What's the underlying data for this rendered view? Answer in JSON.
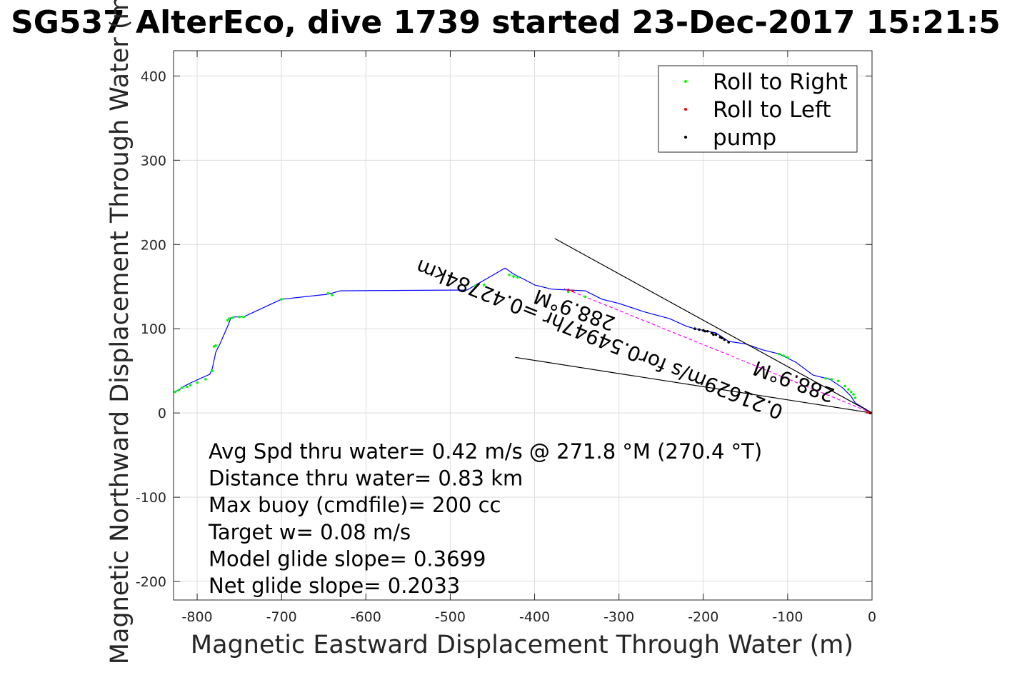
{
  "chart_data": {
    "type": "line",
    "title": "SG537 AlterEco, dive 1739 started 23-Dec-2017 15:21:5",
    "xlabel": "Magnetic Eastward Displacement Through Water (m)",
    "ylabel": "Magnetic Northward Displacement Through Water (m)",
    "xlim": [
      -828,
      0
    ],
    "ylim": [
      -222,
      430
    ],
    "xticks": [
      -800,
      -700,
      -600,
      -500,
      -400,
      -300,
      -200,
      -100,
      0
    ],
    "yticks": [
      -200,
      -100,
      0,
      100,
      200,
      300,
      400
    ],
    "grid": true,
    "legend": {
      "placement": "top-right",
      "entries": [
        {
          "label": "Roll to Right",
          "color": "#00ff00"
        },
        {
          "label": "Roll to Left",
          "color": "#ff0000"
        },
        {
          "label": "pump",
          "color": "#000000"
        }
      ]
    },
    "series": [
      {
        "color": "#0000ff",
        "style": "line",
        "x": [
          0,
          -20,
          -25,
          -35,
          -50,
          -70,
          -90,
          -110,
          -130,
          -150,
          -170,
          -185,
          -200,
          -210,
          -220,
          -240,
          -270,
          -300,
          -320,
          -340,
          -360,
          -380,
          -400,
          -415,
          -425,
          -435,
          -480,
          -630,
          -645,
          -700,
          -745,
          -755,
          -760,
          -763,
          -766,
          -773,
          -778,
          -782,
          -785,
          -805,
          -815,
          -822,
          -828
        ],
        "y": [
          0,
          12,
          20,
          30,
          40,
          45,
          60,
          70,
          75,
          82,
          85,
          95,
          98,
          100,
          103,
          112,
          120,
          130,
          135,
          145,
          146,
          147,
          152,
          160,
          165,
          172,
          146,
          145,
          141,
          135,
          114,
          114,
          113,
          105,
          98,
          82,
          72,
          53,
          46,
          37,
          32,
          27,
          25
        ]
      },
      {
        "color": "#ff00ff",
        "style": "dashed",
        "x": [
          0,
          -365
        ],
        "y": [
          0,
          148
        ]
      },
      {
        "color": "#000000",
        "style": "line",
        "x": [
          0,
          -376
        ],
        "y": [
          0,
          207
        ]
      },
      {
        "color": "#000000",
        "style": "line",
        "x": [
          0,
          -423
        ],
        "y": [
          0,
          66
        ]
      }
    ],
    "markers": {
      "roll_right": {
        "color": "#00ff00",
        "x": [
          -20,
          -22,
          -25,
          -28,
          -32,
          -40,
          -48,
          -55,
          -100,
          -105,
          -110,
          -340,
          -360,
          -420,
          -425,
          -430,
          -460,
          -470,
          -640,
          -645,
          -700,
          -745,
          -750,
          -758,
          -762,
          -764,
          -778,
          -780,
          -782,
          -790,
          -800,
          -808,
          -812,
          -818,
          -822,
          -826
        ],
        "y": [
          18,
          22,
          25,
          28,
          32,
          38,
          40,
          41,
          66,
          68,
          70,
          138,
          144,
          161,
          162,
          164,
          152,
          151,
          140,
          142,
          135,
          114,
          114,
          113,
          112,
          110,
          80,
          79,
          50,
          40,
          36,
          33,
          31,
          30,
          27,
          25
        ]
      },
      "roll_left": {
        "color": "#ff0000",
        "x": [
          -1,
          -3,
          -5,
          -355,
          -360
        ],
        "y": [
          0,
          0,
          1,
          145,
          146
        ]
      },
      "pump": {
        "color": "#000000",
        "x": [
          -210,
          -205,
          -200,
          -195,
          -190,
          -185,
          -180,
          -175,
          -170,
          -198,
          -188,
          -178,
          -2
        ],
        "y": [
          100,
          99,
          98,
          97,
          95,
          93,
          90,
          87,
          84,
          97,
          93,
          89,
          0
        ]
      }
    },
    "annotations": [
      {
        "text": "288.9°M",
        "x": -350,
        "y": 130,
        "rotation_deg": 200
      },
      {
        "text": "0.21629m/s for0.54947hr =0.42784km",
        "x": -320,
        "y": 95,
        "rotation_deg": 202
      },
      {
        "text": "288.9°M",
        "x": -90,
        "y": 45,
        "rotation_deg": 200
      }
    ],
    "stats": [
      "Avg Spd thru water=  0.42 m/s @ 271.8 °M (270.4 °T)",
      "Distance thru water=  0.83 km",
      "Max buoy (cmdfile)= 200 cc",
      "Target w= 0.08 m/s",
      "Model glide slope= 0.3699",
      "Net glide slope= 0.2033"
    ]
  }
}
